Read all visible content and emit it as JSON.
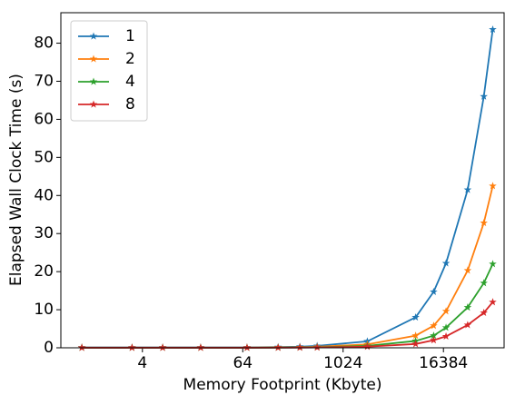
{
  "chart_data": {
    "type": "line",
    "xlabel": "Memory Footprint (Kbyte)",
    "ylabel": "Elapsed Wall Clock Time (s)",
    "xscale": "log",
    "xbase": 2,
    "x": [
      0.75,
      3,
      7,
      20,
      72,
      170,
      310,
      500,
      2000,
      7600,
      12500,
      17600,
      32000,
      50000,
      64000
    ],
    "xlim": [
      0.42,
      87600
    ],
    "xticks": [
      4,
      64,
      1024,
      16384
    ],
    "ylim": [
      0,
      88
    ],
    "yticks": [
      0,
      10,
      20,
      30,
      40,
      50,
      60,
      70,
      80
    ],
    "legend": "upper left",
    "series": [
      {
        "name": "1",
        "color": "#1f77b4",
        "values": [
          0.1,
          0.1,
          0.1,
          0.1,
          0.1,
          0.2,
          0.3,
          0.5,
          1.7,
          8,
          14.7,
          22.2,
          41.5,
          66,
          83.6
        ]
      },
      {
        "name": "2",
        "color": "#ff7f0e",
        "values": [
          0.05,
          0.05,
          0.05,
          0.05,
          0.05,
          0.1,
          0.15,
          0.25,
          0.9,
          3.2,
          5.8,
          9.6,
          20.3,
          32.8,
          42.5
        ]
      },
      {
        "name": "4",
        "color": "#2ca02c",
        "values": [
          0.03,
          0.03,
          0.03,
          0.03,
          0.03,
          0.05,
          0.08,
          0.13,
          0.5,
          1.8,
          3.2,
          5.3,
          10.6,
          17,
          22
        ]
      },
      {
        "name": "8",
        "color": "#d62728",
        "values": [
          0.02,
          0.02,
          0.02,
          0.02,
          0.02,
          0.03,
          0.05,
          0.08,
          0.3,
          1,
          2,
          3,
          6,
          9.2,
          12
        ]
      }
    ]
  }
}
